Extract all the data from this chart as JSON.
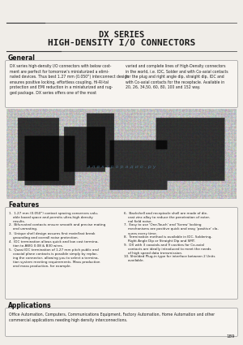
{
  "page_bg": "#f0ede8",
  "title_line1": "DX SERIES",
  "title_line2": "HIGH-DENSITY I/O CONNECTORS",
  "title_color": "#1a1a1a",
  "line_color": "#555555",
  "section_title_color": "#111111",
  "text_color": "#222222",
  "box_edge_color": "#999999",
  "box_face_color": "#f7f4f0",
  "page_number": "189",
  "general_title": "General",
  "gen_left": "DX series high-density I/O connectors with below cost-\nment are perfect for tomorrow's miniaturized a elimi-\nnated devices. Thus best 1.27 mm (0.050\") interconnect design\nensures positive locking, effortless coupling, Hi-RI-tal\nprotection and EMI reduction in a miniaturized and rug-\nged package. DX series offers one of the most",
  "gen_right": "varied and complete lines of High-Density connectors\nin the world, i.e. IDC, Solder and with Co-axial contacts\nfor the plug and right angle dip, straight dip, IDC and\nwith Co-axial contacts for the receptacle. Available in\n20, 26, 34,50, 60, 80, 100 and 152 way.",
  "features_title": "Features",
  "feat_left": [
    "1.  1.27 mm (0.050\") contact spacing conserves valu-\n    able board space and permits ultra-high density\n    results.",
    "2.  Bifurcated contacts ensure smooth and precise mating\n    and unmating.",
    "3.  Unique shell design assures first mate/last break\n    grounding and overall noise protection.",
    "4.  IDC termination allows quick and low cost termina-\n    tion to AWG 0.08 & B30 wires.",
    "5.  Quasi IDC termination of 1.27 mm pitch public and\n    coaxial plane contacts is possible simply by replac-\n    ing the connector, allowing you to select a termina-\n    tion system meeting requirements. Mass production\n    and mass production, for example."
  ],
  "feat_right": [
    "6.  Backshell and receptacle shell are made of die-\n    cast zinc alloy to reduce the penetration of exter-\n    nal field noise.",
    "7.  Easy to use 'One-Touch' and 'Screw' locking\n    mechanisms are positive quick and easy 'positive' clo-\n    sures every time.",
    "8.  Termination method is available in IDC, Soldering,\n    Right Angle Dip or Straight Dip and SMT.",
    "9.  DX with 3 coaxials and 9 cavities for Co-axial\n    contacts are ideally introduced to meet the needs\n    of high speed data transmission.",
    "10. Shielded Plug-in type for interface between 2 Units\n    available."
  ],
  "applications_title": "Applications",
  "applications_text": "Office Automation, Computers, Communications Equipment, Factory Automation, Home Automation and other\ncommercial applications needing high density interconnections."
}
